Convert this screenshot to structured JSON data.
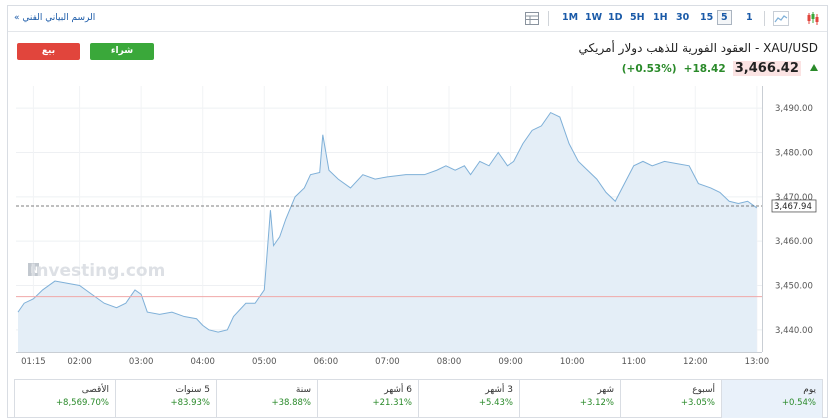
{
  "toolbar": {
    "tech_chart_link": "الرسم البياني الفني »",
    "timeframes": [
      "1M",
      "1W",
      "1D",
      "5H",
      "1H",
      "30",
      "15",
      "5",
      "1"
    ],
    "active_timeframe": "5"
  },
  "header": {
    "sell_label": "بيع",
    "buy_label": "شراء",
    "instrument_title": "XAU/USD - العقود الفورية للذهب دولار أمريكي",
    "price": "3,466.42",
    "change": "+18.42",
    "change_pct": "(+0.53%)"
  },
  "chart_data": {
    "type": "area",
    "watermark": "Investing.com",
    "current_value_label": "3,467.94",
    "current_value": 3467.94,
    "baseline_value": 3447.5,
    "ylim": [
      3435,
      3495
    ],
    "y_ticks": [
      3440,
      3450,
      3460,
      3470,
      3480,
      3490
    ],
    "y_tick_labels": [
      "3,440.00",
      "3,450.00",
      "3,460.00",
      "3,470.00",
      "3,480.00",
      "3,490.00"
    ],
    "x_range": [
      1.0,
      13.0833
    ],
    "x_ticks": [
      1.25,
      2,
      3,
      4,
      5,
      6,
      7,
      8,
      9,
      10,
      11,
      12,
      13
    ],
    "x_tick_labels": [
      "01:15",
      "02:00",
      "03:00",
      "04:00",
      "05:00",
      "06:00",
      "07:00",
      "08:00",
      "09:00",
      "10:00",
      "11:00",
      "12:00",
      "13:00"
    ],
    "series": [
      {
        "points": [
          [
            1.0,
            3444
          ],
          [
            1.1,
            3446
          ],
          [
            1.25,
            3447
          ],
          [
            1.4,
            3449
          ],
          [
            1.6,
            3451
          ],
          [
            1.8,
            3450.5
          ],
          [
            2.0,
            3450
          ],
          [
            2.2,
            3448
          ],
          [
            2.4,
            3446
          ],
          [
            2.6,
            3445
          ],
          [
            2.75,
            3446
          ],
          [
            2.9,
            3449
          ],
          [
            3.0,
            3448
          ],
          [
            3.1,
            3444
          ],
          [
            3.3,
            3443.5
          ],
          [
            3.5,
            3444
          ],
          [
            3.7,
            3443
          ],
          [
            3.9,
            3442.5
          ],
          [
            4.0,
            3441
          ],
          [
            4.1,
            3440
          ],
          [
            4.25,
            3439.5
          ],
          [
            4.4,
            3440
          ],
          [
            4.5,
            3443
          ],
          [
            4.7,
            3446
          ],
          [
            4.85,
            3446
          ],
          [
            5.0,
            3449
          ],
          [
            5.05,
            3458
          ],
          [
            5.1,
            3467
          ],
          [
            5.15,
            3459
          ],
          [
            5.25,
            3461
          ],
          [
            5.35,
            3465
          ],
          [
            5.5,
            3470
          ],
          [
            5.65,
            3472
          ],
          [
            5.75,
            3475
          ],
          [
            5.9,
            3475.5
          ],
          [
            5.95,
            3484
          ],
          [
            6.05,
            3476
          ],
          [
            6.2,
            3474
          ],
          [
            6.4,
            3472
          ],
          [
            6.6,
            3475
          ],
          [
            6.8,
            3474
          ],
          [
            7.0,
            3474.5
          ],
          [
            7.3,
            3475
          ],
          [
            7.6,
            3475
          ],
          [
            7.8,
            3476
          ],
          [
            7.95,
            3477
          ],
          [
            8.1,
            3476
          ],
          [
            8.25,
            3477
          ],
          [
            8.35,
            3475
          ],
          [
            8.5,
            3478
          ],
          [
            8.65,
            3477
          ],
          [
            8.8,
            3480
          ],
          [
            8.95,
            3477
          ],
          [
            9.05,
            3478
          ],
          [
            9.2,
            3482
          ],
          [
            9.35,
            3485
          ],
          [
            9.5,
            3486
          ],
          [
            9.65,
            3489
          ],
          [
            9.8,
            3488
          ],
          [
            9.95,
            3482
          ],
          [
            10.1,
            3478
          ],
          [
            10.25,
            3476
          ],
          [
            10.4,
            3474
          ],
          [
            10.55,
            3471
          ],
          [
            10.7,
            3469
          ],
          [
            10.85,
            3473
          ],
          [
            11.0,
            3477
          ],
          [
            11.15,
            3478
          ],
          [
            11.3,
            3477
          ],
          [
            11.5,
            3478
          ],
          [
            11.7,
            3477.5
          ],
          [
            11.9,
            3477
          ],
          [
            12.05,
            3473
          ],
          [
            12.25,
            3472
          ],
          [
            12.4,
            3471
          ],
          [
            12.55,
            3469
          ],
          [
            12.7,
            3468.5
          ],
          [
            12.85,
            3469
          ],
          [
            13.0,
            3467.5
          ]
        ]
      }
    ],
    "grid": true
  },
  "performance": [
    {
      "label": "الأقصى",
      "value": "+8,569.70%"
    },
    {
      "label": "5 سنوات",
      "value": "+83.93%"
    },
    {
      "label": "سنة",
      "value": "+38.88%"
    },
    {
      "label": "6 أشهر",
      "value": "+21.31%"
    },
    {
      "label": "3 أشهر",
      "value": "+5.43%"
    },
    {
      "label": "شهر",
      "value": "+3.12%"
    },
    {
      "label": "أسبوع",
      "value": "+3.05%"
    },
    {
      "label": "يوم",
      "value": "+0.54%"
    }
  ],
  "colors": {
    "line": "#7fb0d8",
    "fill": "#e4eef7",
    "sell": "#e1453c",
    "buy": "#3aa83a",
    "positive": "#2a8a2a",
    "baseline": "#f0a8a8"
  }
}
